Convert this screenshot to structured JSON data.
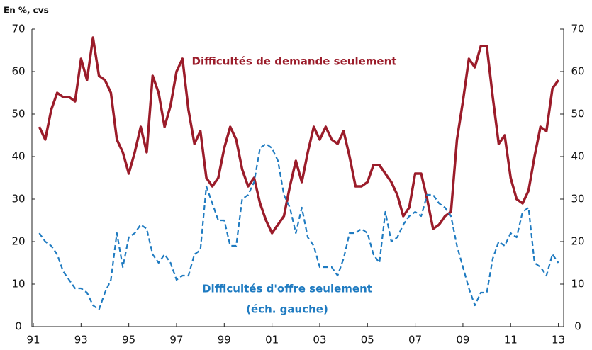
{
  "chart_data": {
    "type": "line",
    "unit_label": "En %, cvs",
    "x": [
      1991.25,
      1991.5,
      1991.75,
      1992,
      1992.25,
      1992.5,
      1992.75,
      1993,
      1993.25,
      1993.5,
      1993.75,
      1994,
      1994.25,
      1994.5,
      1994.75,
      1995,
      1995.25,
      1995.5,
      1995.75,
      1996,
      1996.25,
      1996.5,
      1996.75,
      1997,
      1997.25,
      1997.5,
      1997.75,
      1998,
      1998.25,
      1998.5,
      1998.75,
      1999,
      1999.25,
      1999.5,
      1999.75,
      2000,
      2000.25,
      2000.5,
      2000.75,
      2001,
      2001.25,
      2001.5,
      2001.75,
      2002,
      2002.25,
      2002.5,
      2002.75,
      2003,
      2003.25,
      2003.5,
      2003.75,
      2004,
      2004.25,
      2004.5,
      2004.75,
      2005,
      2005.25,
      2005.5,
      2005.75,
      2006,
      2006.25,
      2006.5,
      2006.75,
      2007,
      2007.25,
      2007.5,
      2007.75,
      2008,
      2008.25,
      2008.5,
      2008.75,
      2009,
      2009.25,
      2009.5,
      2009.75,
      2010,
      2010.25,
      2010.5,
      2010.75,
      2011,
      2011.25,
      2011.5,
      2011.75,
      2012,
      2012.25,
      2012.5,
      2012.75,
      2013
    ],
    "series": [
      {
        "name": "Difficultés de demande seulement",
        "color": "#9b1c2a",
        "axis": "y2",
        "values": [
          47,
          44,
          51,
          55,
          54,
          54,
          53,
          63,
          58,
          68,
          59,
          58,
          55,
          44,
          41,
          36,
          41,
          47,
          41,
          59,
          55,
          47,
          52,
          60,
          63,
          51,
          43,
          46,
          35,
          33,
          35,
          42,
          47,
          44,
          37,
          33,
          35,
          29,
          25,
          22,
          24,
          26,
          33,
          39,
          34,
          41,
          47,
          44,
          47,
          44,
          43,
          46,
          40,
          33,
          33,
          34,
          38,
          38,
          36,
          34,
          31,
          26,
          28,
          36,
          36,
          30,
          23,
          24,
          26,
          27,
          44,
          53,
          63,
          61,
          66,
          66,
          54,
          43,
          45,
          35,
          30,
          29,
          32,
          40,
          47,
          46,
          56,
          58
        ]
      },
      {
        "name": "Difficultés d'offre seulement",
        "color": "#1f7bc1",
        "dashed": true,
        "values": [
          22,
          20,
          19,
          17,
          13,
          11,
          9,
          9,
          8,
          5,
          4,
          8,
          11,
          22,
          14,
          21,
          22,
          24,
          23,
          17,
          15,
          17,
          15,
          11,
          12,
          12,
          17,
          18,
          33,
          29,
          25,
          25,
          19,
          19,
          30,
          31,
          34,
          42,
          43,
          42,
          39,
          31,
          28,
          22,
          28,
          21,
          19,
          14,
          14,
          14,
          12,
          16,
          22,
          22,
          23,
          22,
          17,
          15,
          27,
          20,
          21,
          24,
          26,
          27,
          26,
          31,
          31,
          29,
          28,
          26,
          19,
          14,
          9,
          5,
          8,
          8,
          16,
          20,
          19,
          22,
          21,
          27,
          28,
          15,
          14,
          12,
          17,
          15
        ]
      }
    ],
    "annotations": [
      "Difficultés de demande seulement",
      "Difficultés d'offre seulement",
      "(éch. gauche)"
    ],
    "xlim": [
      1991,
      2013.25
    ],
    "xticks": [
      {
        "value": 1991,
        "label": "91"
      },
      {
        "value": 1993,
        "label": "93"
      },
      {
        "value": 1995,
        "label": "95"
      },
      {
        "value": 1997,
        "label": "97"
      },
      {
        "value": 1999,
        "label": "99"
      },
      {
        "value": 2001,
        "label": "01"
      },
      {
        "value": 2003,
        "label": "03"
      },
      {
        "value": 2005,
        "label": "05"
      },
      {
        "value": 2007,
        "label": "07"
      },
      {
        "value": 2009,
        "label": "09"
      },
      {
        "value": 2011,
        "label": "11"
      },
      {
        "value": 2013,
        "label": "13"
      }
    ],
    "ylim": [
      0,
      70
    ],
    "yticks": [
      0,
      10,
      20,
      30,
      40,
      50,
      60,
      70
    ],
    "y2lim": [
      0,
      70
    ],
    "y2ticks": [
      0,
      10,
      20,
      30,
      40,
      50,
      60,
      70
    ]
  }
}
